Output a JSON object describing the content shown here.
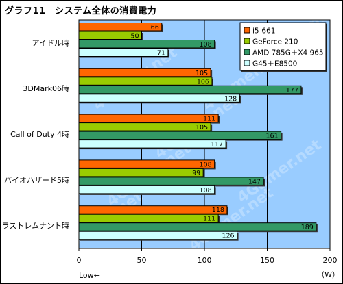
{
  "chart_data": {
    "type": "bar",
    "orientation": "horizontal",
    "title": "グラフ11　システム全体の消費電力",
    "categories": [
      "アイドル時",
      "3DMark06時",
      "Call of Duty 4時",
      "バイオハザード5時",
      "ラストレムナント時"
    ],
    "series": [
      {
        "name": "i5-661",
        "color": "#ff6600",
        "values": [
          66,
          105,
          111,
          108,
          118
        ]
      },
      {
        "name": "GeForce 210",
        "color": "#99cc00",
        "values": [
          50,
          106,
          105,
          99,
          111
        ]
      },
      {
        "name": "AMD 785G＋X4 965",
        "color": "#339966",
        "values": [
          108,
          177,
          161,
          147,
          189
        ]
      },
      {
        "name": "G45＋E8500",
        "color": "#ccffff",
        "values": [
          71,
          128,
          117,
          108,
          126
        ]
      }
    ],
    "xlim": [
      0,
      200
    ],
    "ticks": [
      0,
      50,
      100,
      150,
      200
    ],
    "xlabel_left": "Low←",
    "xlabel_unit": "（W）",
    "watermark": "4Gamer.net",
    "plot_background": "#99ccff",
    "grid": "vertical",
    "legend_position": "top-right"
  }
}
